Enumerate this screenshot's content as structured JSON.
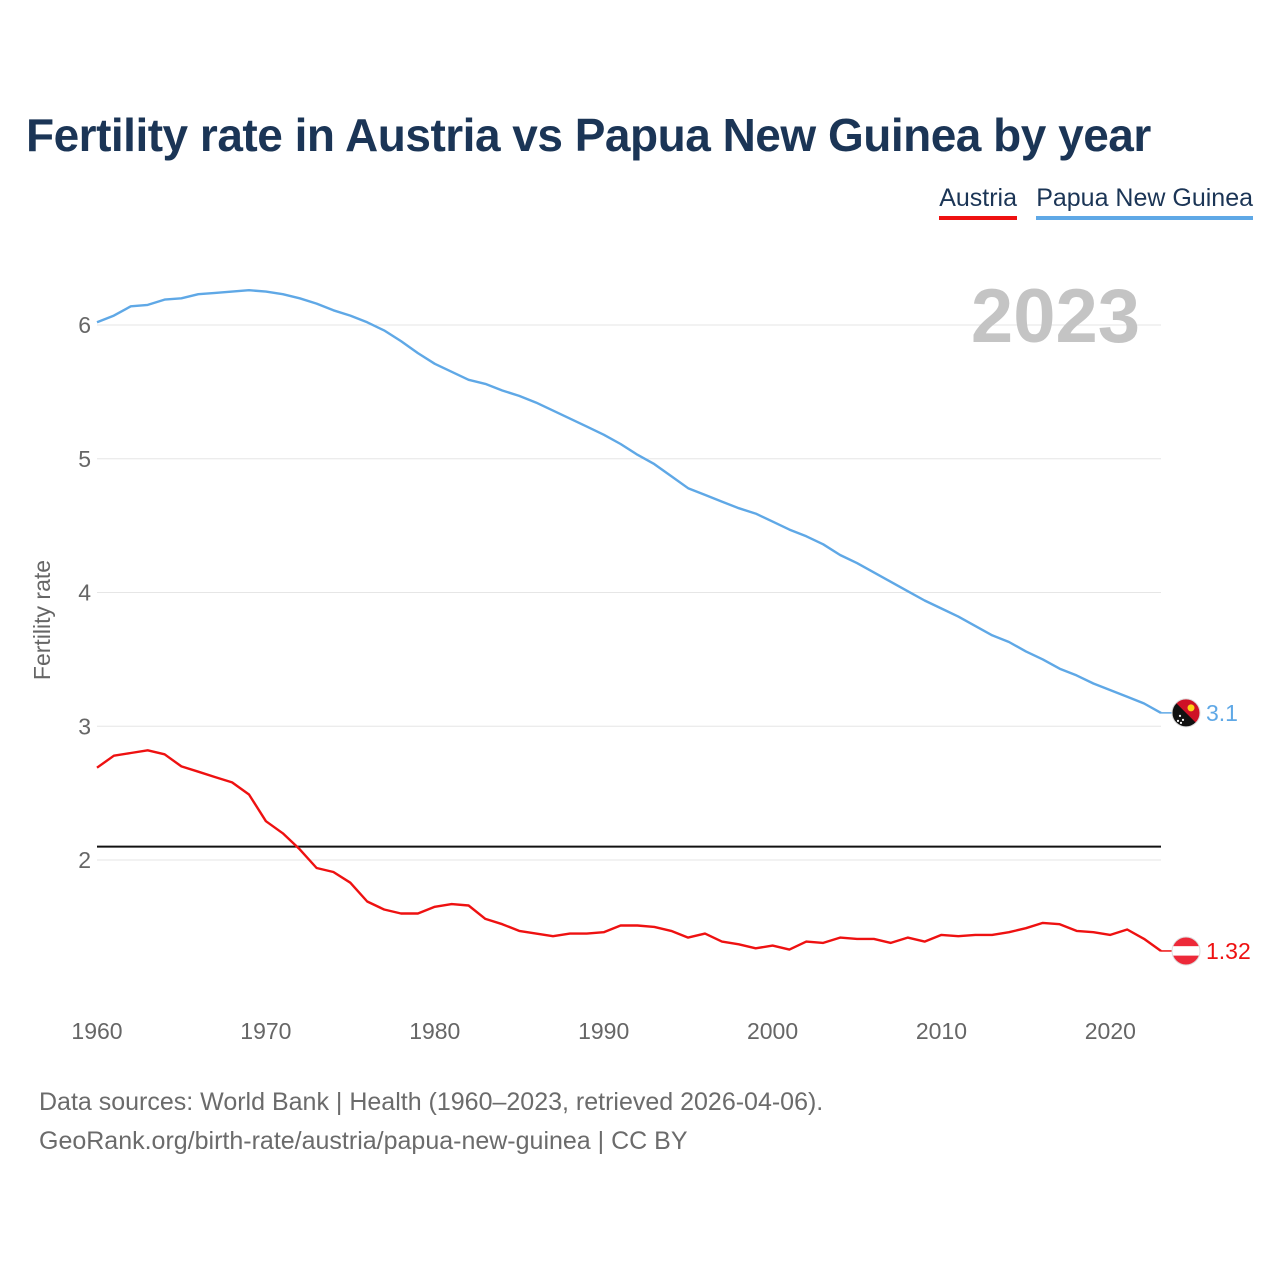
{
  "title": "Fertility rate in Austria vs Papua New Guinea by year",
  "legend": {
    "austria": "Austria",
    "png": "Papua New Guinea"
  },
  "footer": {
    "source": "Data sources: World Bank | Health (1960–2023, retrieved 2026-04-06).",
    "credit": "GeoRank.org/birth-rate/austria/papua-new-guinea | CC BY"
  },
  "chart_data": {
    "type": "line",
    "title": "Fertility rate in Austria vs Papua New Guinea by year",
    "xlabel": "",
    "ylabel": "Fertility rate",
    "year_label": "2023",
    "xlim": [
      1960,
      2023
    ],
    "ylim": [
      1,
      6.5
    ],
    "x_ticks": [
      1960,
      1970,
      1980,
      1990,
      2000,
      2010,
      2020
    ],
    "y_ticks": [
      2,
      3,
      4,
      5,
      6
    ],
    "reference_line": 2.1,
    "x": [
      1960,
      1961,
      1962,
      1963,
      1964,
      1965,
      1966,
      1967,
      1968,
      1969,
      1970,
      1971,
      1972,
      1973,
      1974,
      1975,
      1976,
      1977,
      1978,
      1979,
      1980,
      1981,
      1982,
      1983,
      1984,
      1985,
      1986,
      1987,
      1988,
      1989,
      1990,
      1991,
      1992,
      1993,
      1994,
      1995,
      1996,
      1997,
      1998,
      1999,
      2000,
      2001,
      2002,
      2003,
      2004,
      2005,
      2006,
      2007,
      2008,
      2009,
      2010,
      2011,
      2012,
      2013,
      2014,
      2015,
      2016,
      2017,
      2018,
      2019,
      2020,
      2021,
      2022,
      2023
    ],
    "series": [
      {
        "name": "Austria",
        "color": "#ee1111",
        "end_label": "1.32",
        "values": [
          2.69,
          2.78,
          2.8,
          2.82,
          2.79,
          2.7,
          2.66,
          2.62,
          2.58,
          2.49,
          2.29,
          2.2,
          2.08,
          1.94,
          1.91,
          1.83,
          1.69,
          1.63,
          1.6,
          1.6,
          1.65,
          1.67,
          1.66,
          1.56,
          1.52,
          1.47,
          1.45,
          1.43,
          1.45,
          1.45,
          1.46,
          1.51,
          1.51,
          1.5,
          1.47,
          1.42,
          1.45,
          1.39,
          1.37,
          1.34,
          1.36,
          1.33,
          1.39,
          1.38,
          1.42,
          1.41,
          1.41,
          1.38,
          1.42,
          1.39,
          1.44,
          1.43,
          1.44,
          1.44,
          1.46,
          1.49,
          1.53,
          1.52,
          1.47,
          1.46,
          1.44,
          1.48,
          1.41,
          1.32
        ]
      },
      {
        "name": "Papua New Guinea",
        "color": "#5fa8e6",
        "end_label": "3.1",
        "values": [
          6.02,
          6.07,
          6.14,
          6.15,
          6.19,
          6.2,
          6.23,
          6.24,
          6.25,
          6.26,
          6.25,
          6.23,
          6.2,
          6.16,
          6.11,
          6.07,
          6.02,
          5.96,
          5.88,
          5.79,
          5.71,
          5.65,
          5.59,
          5.56,
          5.51,
          5.47,
          5.42,
          5.36,
          5.3,
          5.24,
          5.18,
          5.11,
          5.03,
          4.96,
          4.87,
          4.78,
          4.73,
          4.68,
          4.63,
          4.59,
          4.53,
          4.47,
          4.42,
          4.36,
          4.28,
          4.22,
          4.15,
          4.08,
          4.01,
          3.94,
          3.88,
          3.82,
          3.75,
          3.68,
          3.63,
          3.56,
          3.5,
          3.43,
          3.38,
          3.32,
          3.27,
          3.22,
          3.17,
          3.1
        ]
      }
    ]
  }
}
